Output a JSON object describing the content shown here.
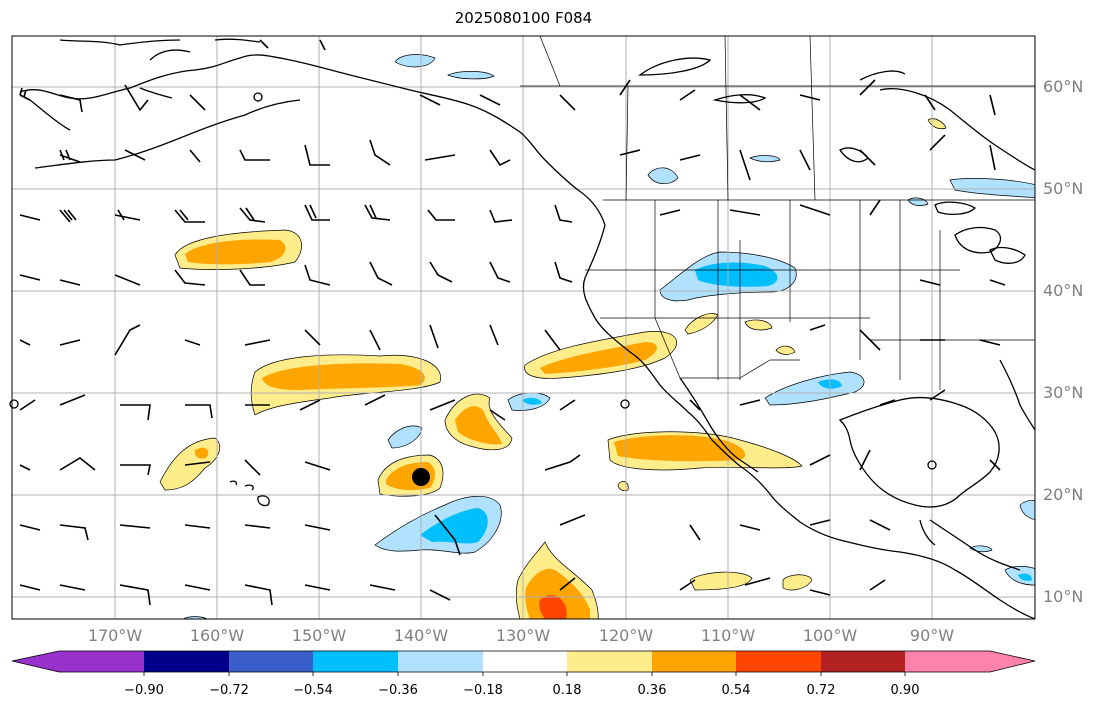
{
  "title": "2025080100 F084",
  "lat_labels": [
    "60°N",
    "50°N",
    "40°N",
    "30°N",
    "20°N",
    "10°N"
  ],
  "lon_labels": [
    "170°W",
    "160°W",
    "150°W",
    "140°W",
    "130°W",
    "120°W",
    "110°W",
    "100°W",
    "90°W"
  ],
  "colorbar": {
    "tick_labels": [
      "−0.90",
      "−0.72",
      "−0.54",
      "−0.36",
      "−0.18",
      "0.18",
      "0.36",
      "0.54",
      "0.72",
      "0.90"
    ],
    "colors": [
      "#9932cc",
      "#00008b",
      "#3a5fcd",
      "#00bfff",
      "#b0e2ff",
      "#ffffff",
      "#ffec8b",
      "#ffa500",
      "#ff4500",
      "#b22222",
      "#ff82ab"
    ]
  },
  "colors": {
    "coast": "#000000",
    "grid": "#b0b0b0",
    "label": "#808080"
  }
}
